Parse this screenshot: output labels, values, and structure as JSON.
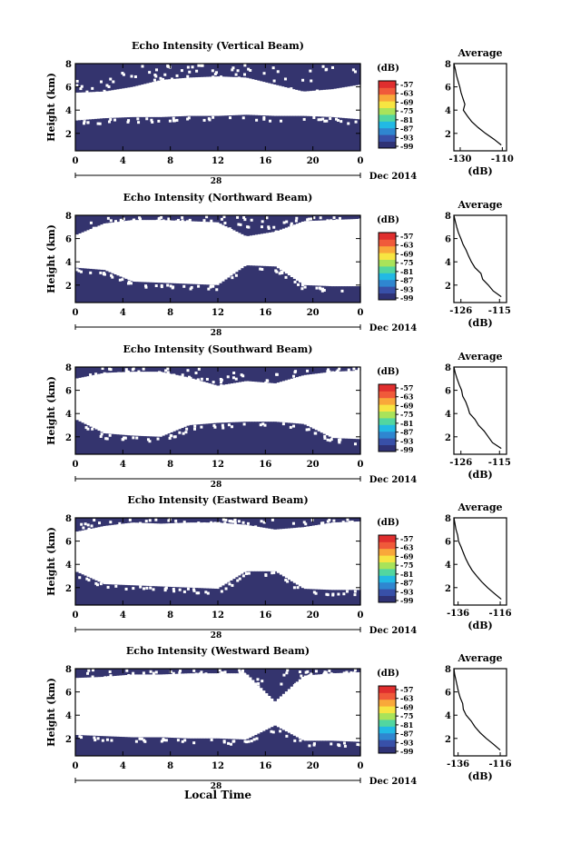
{
  "figure": {
    "date_label": "Dec 2014",
    "day_label": "28",
    "bottom_xlabel": "Local Time"
  },
  "colorbar": {
    "unit_label": "(dB)",
    "ticks": [
      "-57",
      "-63",
      "-69",
      "-75",
      "-81",
      "-87",
      "-93",
      "-99"
    ],
    "colors": [
      "#2f3275",
      "#3850a8",
      "#2f86d0",
      "#22b9e4",
      "#52d6a0",
      "#a9e35a",
      "#f7e542",
      "#f9a83a",
      "#f05a3a",
      "#e02e2e"
    ]
  },
  "colors": {
    "fill": "#34346e",
    "axis": "#000000",
    "background": "#ffffff"
  },
  "chart_data": [
    {
      "type": "heatmap",
      "title": "Echo Intensity (Vertical Beam)",
      "ylabel": "Height (km)",
      "xticks": [
        "0",
        "4",
        "8",
        "12",
        "16",
        "20",
        "0"
      ],
      "xlim": [
        0,
        24
      ],
      "ylim": [
        0.5,
        8
      ],
      "yticks": [
        "2",
        "4",
        "6",
        "8"
      ],
      "lower_layer": {
        "top_km": [
          3.1,
          3.3,
          3.4,
          3.4,
          3.5,
          3.5,
          3.6,
          3.5,
          3.5,
          3.4,
          3.2
        ],
        "hours": [
          0,
          2.4,
          4.8,
          7.2,
          9.6,
          12,
          14.4,
          16.8,
          19.2,
          21.6,
          24
        ]
      },
      "upper_layer": {
        "bottom_km": [
          5.5,
          5.6,
          6.0,
          6.6,
          6.8,
          6.9,
          6.8,
          6.2,
          5.6,
          5.8,
          6.2
        ],
        "hours": [
          0,
          2.4,
          4.8,
          7.2,
          9.6,
          12,
          14.4,
          16.8,
          19.2,
          21.6,
          24
        ]
      },
      "average": {
        "title": "Average",
        "xlabel": "(dB)",
        "xticks": [
          "-130",
          "-110"
        ],
        "xlim": [
          -133,
          -108
        ],
        "ylim": [
          0.5,
          8
        ],
        "yticks": [
          "2",
          "4",
          "6",
          "8"
        ],
        "height_km": [
          8.0,
          7.5,
          7.0,
          6.5,
          6.0,
          5.5,
          5.0,
          4.5,
          4.0,
          3.5,
          3.0,
          2.5,
          2.0,
          1.5,
          1.0
        ],
        "values_db": [
          -133,
          -132.3,
          -131.8,
          -131.0,
          -130.2,
          -129.6,
          -128.7,
          -127.8,
          -128.5,
          -126.6,
          -124.5,
          -121.5,
          -118.0,
          -114.0,
          -110.5
        ]
      }
    },
    {
      "type": "heatmap",
      "title": "Echo Intensity (Northward Beam)",
      "ylabel": "Height (km)",
      "xticks": [
        "0",
        "4",
        "8",
        "12",
        "16",
        "20",
        "0"
      ],
      "xlim": [
        0,
        24
      ],
      "ylim": [
        0.5,
        8
      ],
      "yticks": [
        "2",
        "4",
        "6",
        "8"
      ],
      "lower_layer": {
        "top_km": [
          3.5,
          3.3,
          2.3,
          2.2,
          2.1,
          2.0,
          3.7,
          3.6,
          2.0,
          1.9,
          1.9
        ],
        "hours": [
          0,
          2.4,
          4.8,
          7.2,
          9.6,
          12,
          14.4,
          16.8,
          19.2,
          21.6,
          24
        ]
      },
      "upper_layer": {
        "bottom_km": [
          6.3,
          7.3,
          7.6,
          7.6,
          7.5,
          7.4,
          6.2,
          6.6,
          7.5,
          7.6,
          7.7
        ],
        "hours": [
          0,
          2.4,
          4.8,
          7.2,
          9.6,
          12,
          14.4,
          16.8,
          19.2,
          21.6,
          24
        ]
      },
      "average": {
        "title": "Average",
        "xlabel": "(dB)",
        "xticks": [
          "-126",
          "-115"
        ],
        "xlim": [
          -128,
          -113
        ],
        "ylim": [
          0.5,
          8
        ],
        "yticks": [
          "2",
          "4",
          "6",
          "8"
        ],
        "height_km": [
          8.0,
          7.5,
          7.0,
          6.5,
          6.0,
          5.5,
          5.0,
          4.5,
          4.0,
          3.5,
          3.0,
          2.5,
          2.0,
          1.5,
          1.0
        ],
        "values_db": [
          -128,
          -127.6,
          -127.2,
          -126.7,
          -126.0,
          -125.4,
          -124.5,
          -123.8,
          -123.0,
          -122.0,
          -120.3,
          -119.8,
          -118.2,
          -116.8,
          -114.5
        ]
      }
    },
    {
      "type": "heatmap",
      "title": "Echo Intensity (Southward Beam)",
      "ylabel": "Height (km)",
      "xticks": [
        "0",
        "4",
        "8",
        "12",
        "16",
        "20",
        "0"
      ],
      "xlim": [
        0,
        24
      ],
      "ylim": [
        0.5,
        8
      ],
      "yticks": [
        "2",
        "4",
        "6",
        "8"
      ],
      "lower_layer": {
        "top_km": [
          3.5,
          2.3,
          2.1,
          2.0,
          3.0,
          3.2,
          3.3,
          3.3,
          3.1,
          1.9,
          1.8
        ],
        "hours": [
          0,
          2.4,
          4.8,
          7.2,
          9.6,
          12,
          14.4,
          16.8,
          19.2,
          21.6,
          24
        ]
      },
      "upper_layer": {
        "bottom_km": [
          7.0,
          7.5,
          7.6,
          7.6,
          7.1,
          6.4,
          6.8,
          6.6,
          7.3,
          7.6,
          7.7
        ],
        "hours": [
          0,
          2.4,
          4.8,
          7.2,
          9.6,
          12,
          14.4,
          16.8,
          19.2,
          21.6,
          24
        ]
      },
      "average": {
        "title": "Average",
        "xlabel": "(dB)",
        "xticks": [
          "-126",
          "-115"
        ],
        "xlim": [
          -128,
          -113
        ],
        "ylim": [
          0.5,
          8
        ],
        "yticks": [
          "2",
          "4",
          "6",
          "8"
        ],
        "height_km": [
          8.0,
          7.5,
          7.0,
          6.5,
          6.0,
          5.5,
          5.0,
          4.5,
          4.0,
          3.5,
          3.0,
          2.5,
          2.0,
          1.5,
          1.0
        ],
        "values_db": [
          -128,
          -127.6,
          -127.1,
          -126.5,
          -125.8,
          -125.5,
          -124.6,
          -124.0,
          -123.5,
          -122.0,
          -121.0,
          -119.4,
          -118.2,
          -117.0,
          -114.5
        ]
      }
    },
    {
      "type": "heatmap",
      "title": "Echo Intensity (Eastward Beam)",
      "ylabel": "Height (km)",
      "xticks": [
        "0",
        "4",
        "8",
        "12",
        "16",
        "20",
        "0"
      ],
      "xlim": [
        0,
        24
      ],
      "ylim": [
        0.5,
        8
      ],
      "yticks": [
        "2",
        "4",
        "6",
        "8"
      ],
      "lower_layer": {
        "top_km": [
          3.4,
          2.3,
          2.2,
          2.1,
          2.0,
          1.9,
          3.4,
          3.4,
          1.9,
          1.8,
          1.8
        ],
        "hours": [
          0,
          2.4,
          4.8,
          7.2,
          9.6,
          12,
          14.4,
          16.8,
          19.2,
          21.6,
          24
        ]
      },
      "upper_layer": {
        "bottom_km": [
          6.8,
          7.3,
          7.6,
          7.5,
          7.6,
          7.6,
          7.4,
          7.0,
          7.2,
          7.6,
          7.7
        ],
        "hours": [
          0,
          2.4,
          4.8,
          7.2,
          9.6,
          12,
          14.4,
          16.8,
          19.2,
          21.6,
          24
        ]
      },
      "average": {
        "title": "Average",
        "xlabel": "(dB)",
        "xticks": [
          "-136",
          "-116"
        ],
        "xlim": [
          -138,
          -113
        ],
        "ylim": [
          0.5,
          8
        ],
        "yticks": [
          "2",
          "4",
          "6",
          "8"
        ],
        "height_km": [
          8.0,
          7.5,
          7.0,
          6.5,
          6.0,
          5.5,
          5.0,
          4.5,
          4.0,
          3.5,
          3.0,
          2.5,
          2.0,
          1.5,
          1.0
        ],
        "values_db": [
          -138,
          -137.5,
          -137.0,
          -136.2,
          -135.8,
          -134.6,
          -133.5,
          -132.4,
          -131.0,
          -129.4,
          -127.2,
          -124.8,
          -122.0,
          -118.8,
          -115.5
        ]
      }
    },
    {
      "type": "heatmap",
      "title": "Echo Intensity (Westward Beam)",
      "ylabel": "Height (km)",
      "xticks": [
        "0",
        "4",
        "8",
        "12",
        "16",
        "20",
        "0"
      ],
      "xlim": [
        0,
        24
      ],
      "ylim": [
        0.5,
        8
      ],
      "yticks": [
        "2",
        "4",
        "6",
        "8"
      ],
      "lower_layer": {
        "top_km": [
          2.3,
          2.2,
          2.1,
          2.1,
          2.0,
          2.0,
          1.9,
          3.1,
          1.8,
          1.8,
          1.7
        ],
        "hours": [
          0,
          2.4,
          4.8,
          7.2,
          9.6,
          12,
          14.4,
          16.8,
          19.2,
          21.6,
          24
        ]
      },
      "upper_layer": {
        "bottom_km": [
          7.2,
          7.3,
          7.5,
          7.5,
          7.6,
          7.6,
          7.6,
          5.2,
          7.4,
          7.6,
          7.7
        ],
        "hours": [
          0,
          2.4,
          4.8,
          7.2,
          9.6,
          12,
          14.4,
          16.8,
          19.2,
          21.6,
          24
        ]
      },
      "average": {
        "title": "Average",
        "xlabel": "(dB)",
        "xticks": [
          "-136",
          "-116"
        ],
        "xlim": [
          -138,
          -113
        ],
        "ylim": [
          0.5,
          8
        ],
        "yticks": [
          "2",
          "4",
          "6",
          "8"
        ],
        "height_km": [
          8.0,
          7.5,
          7.0,
          6.5,
          6.0,
          5.5,
          5.0,
          4.5,
          4.0,
          3.5,
          3.0,
          2.5,
          2.0,
          1.5,
          1.0
        ],
        "values_db": [
          -138,
          -137.6,
          -137.0,
          -136.4,
          -135.8,
          -135.0,
          -133.8,
          -133.5,
          -132.2,
          -129.8,
          -128.0,
          -125.6,
          -122.6,
          -119.2,
          -116.0
        ]
      }
    }
  ]
}
